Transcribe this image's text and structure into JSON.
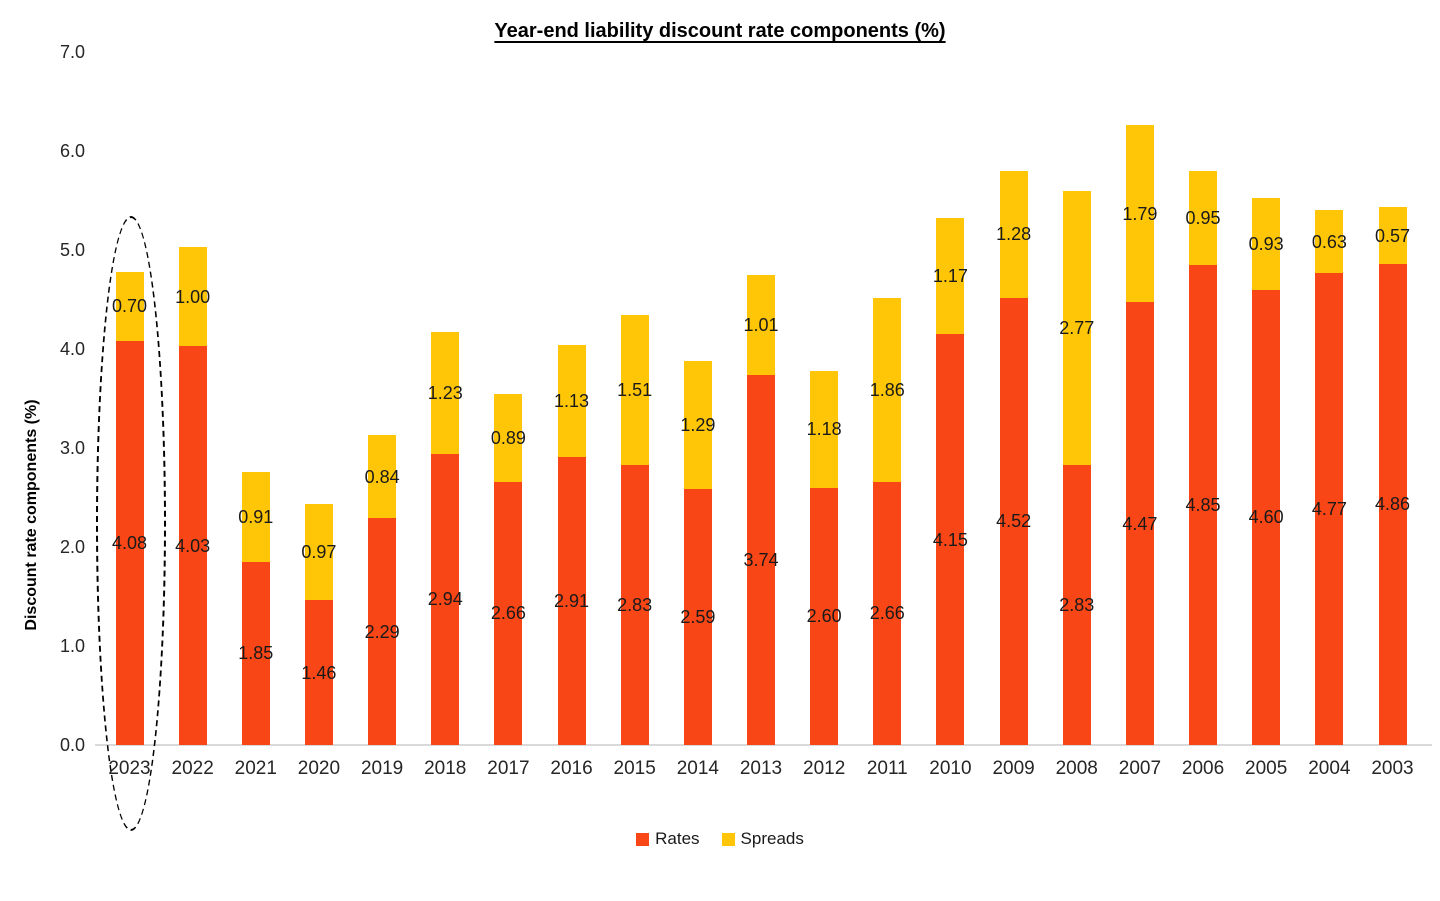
{
  "chart_data": {
    "type": "bar",
    "stacked": true,
    "title": "Year-end liability discount rate components (%)",
    "ylabel": "Discount rate components (%)",
    "xlabel": "",
    "ylim": [
      0,
      7
    ],
    "y_tick_labels": [
      "0.0",
      "1.0",
      "2.0",
      "3.0",
      "4.0",
      "5.0",
      "6.0",
      "7.0"
    ],
    "grid": false,
    "legend_position": "bottom-center",
    "categories": [
      "2023",
      "2022",
      "2021",
      "2020",
      "2019",
      "2018",
      "2017",
      "2016",
      "2015",
      "2014",
      "2013",
      "2012",
      "2011",
      "2010",
      "2009",
      "2008",
      "2007",
      "2006",
      "2005",
      "2004",
      "2003"
    ],
    "series": [
      {
        "name": "Rates",
        "color": "#F94616",
        "values": [
          4.08,
          4.03,
          1.85,
          1.46,
          2.29,
          2.94,
          2.66,
          2.91,
          2.83,
          2.59,
          3.74,
          2.6,
          2.66,
          4.15,
          4.52,
          2.83,
          4.47,
          4.85,
          4.6,
          4.77,
          4.86
        ],
        "labels": [
          "4.08",
          "4.03",
          "1.85",
          "1.46",
          "2.29",
          "2.94",
          "2.66",
          "2.91",
          "2.83",
          "2.59",
          "3.74",
          "2.60",
          "2.66",
          "4.15",
          "4.52",
          "2.83",
          "4.47",
          "4.85",
          "4.60",
          "4.77",
          "4.86"
        ]
      },
      {
        "name": "Spreads",
        "color": "#FFC607",
        "values": [
          0.7,
          1.0,
          0.91,
          0.97,
          0.84,
          1.23,
          0.89,
          1.13,
          1.51,
          1.29,
          1.01,
          1.18,
          1.86,
          1.17,
          1.28,
          2.77,
          1.79,
          0.95,
          0.93,
          0.63,
          0.57
        ],
        "labels": [
          "0.70",
          "1.00",
          "0.91",
          "0.97",
          "0.84",
          "1.23",
          "0.89",
          "1.13",
          "1.51",
          "1.29",
          "1.01",
          "1.18",
          "1.86",
          "1.17",
          "1.28",
          "2.77",
          "1.79",
          "0.95",
          "0.93",
          "0.63",
          "0.57"
        ]
      }
    ],
    "annotation": {
      "type": "dashed-ellipse",
      "target_category": "2023",
      "color": "#000000"
    }
  },
  "legend": {
    "rates_label": "Rates",
    "spreads_label": "Spreads"
  },
  "colors": {
    "rates": "#F94616",
    "spreads": "#FFC607",
    "axis_line": "#D9D9D9",
    "label_text": "#1A1A1A"
  }
}
